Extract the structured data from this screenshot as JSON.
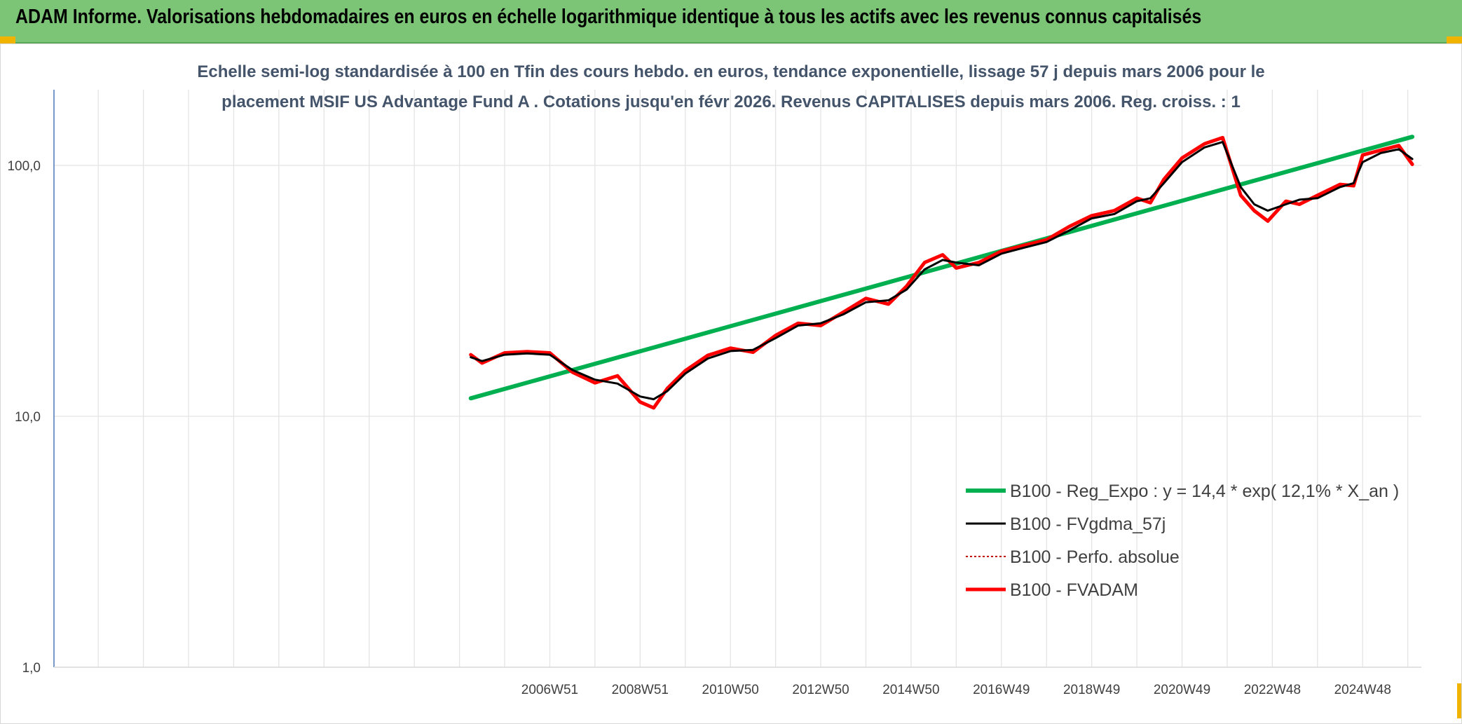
{
  "header": {
    "title": "ADAM Informe. Valorisations hebdomadaires en euros en échelle logarithmique identique à tous les actifs avec les revenus connus capitalisés"
  },
  "colors": {
    "header_bg": "#7cc576",
    "corner_accent": "#f0b400",
    "regression": "#00b050",
    "moving_average": "#000000",
    "perf_absolue": "#c00000",
    "fvadam": "#ff0000"
  },
  "chart_data": {
    "type": "line",
    "title_lines": [
      "Echelle semi-log standardisée à 100 en Tfin des cours hebdo. en euros, tendance exponentielle, lissage 57 j depuis mars 2006 pour le",
      "placement MSIF US Advantage Fund A . Cotations jusqu'en févr 2026. Revenus CAPITALISES depuis mars 2006. Reg. croiss. : 1"
    ],
    "y_scale": "log",
    "ylim": [
      1,
      170
    ],
    "y_ticks": [
      {
        "value": 1,
        "label": "1,0"
      },
      {
        "value": 10,
        "label": "10,0"
      },
      {
        "value": 100,
        "label": "100,0"
      }
    ],
    "xlim": [
      1996.02,
      2026.3
    ],
    "x_tick_labels": [
      {
        "x": 2007.0,
        "label": "2006W51"
      },
      {
        "x": 2009.0,
        "label": "2008W51"
      },
      {
        "x": 2011.0,
        "label": "2010W50"
      },
      {
        "x": 2013.0,
        "label": "2012W50"
      },
      {
        "x": 2015.0,
        "label": "2014W50"
      },
      {
        "x": 2017.0,
        "label": "2016W49"
      },
      {
        "x": 2019.0,
        "label": "2018W49"
      },
      {
        "x": 2021.0,
        "label": "2020W49"
      },
      {
        "x": 2023.0,
        "label": "2022W48"
      },
      {
        "x": 2025.0,
        "label": "2024W48"
      }
    ],
    "grid": true,
    "legend_position": "bottom-right",
    "series": [
      {
        "name": "B100 - Reg_Expo : y = 14,4 * exp( 12,1% *  X_an )",
        "style": "regression",
        "x": [
          2005.25,
          2026.1
        ],
        "values": [
          11.8,
          130
        ]
      },
      {
        "name": "B100 - FVgdma_57j",
        "style": "moving-average",
        "x": [
          2005.25,
          2005.5,
          2006.0,
          2006.5,
          2007.0,
          2007.5,
          2008.0,
          2008.5,
          2009.0,
          2009.3,
          2009.6,
          2010.0,
          2010.5,
          2011.0,
          2011.5,
          2012.0,
          2012.5,
          2013.0,
          2013.5,
          2014.0,
          2014.5,
          2014.9,
          2015.3,
          2015.7,
          2016.0,
          2016.5,
          2017.0,
          2017.5,
          2018.0,
          2018.5,
          2019.0,
          2019.5,
          2020.0,
          2020.3,
          2020.6,
          2021.0,
          2021.5,
          2021.9,
          2022.3,
          2022.6,
          2022.9,
          2023.3,
          2023.6,
          2024.0,
          2024.5,
          2024.8,
          2025.0,
          2025.4,
          2025.8,
          2026.1
        ],
        "values": [
          17.2,
          16.6,
          17.6,
          17.8,
          17.6,
          15.3,
          14.0,
          13.5,
          12.0,
          11.7,
          12.6,
          14.8,
          17.0,
          18.2,
          18.4,
          20.5,
          23.0,
          23.5,
          25.5,
          28.5,
          29.0,
          32.0,
          38.5,
          42.0,
          41.0,
          40.0,
          44.5,
          47.0,
          49.5,
          55.0,
          61.5,
          64.0,
          72.0,
          74.0,
          85.0,
          103.0,
          118.0,
          124.0,
          82.0,
          70.0,
          66.0,
          70.0,
          73.0,
          74.0,
          82.0,
          85.0,
          103.0,
          112.0,
          116.0,
          106.0
        ]
      },
      {
        "name": "B100 - Perfo. absolue",
        "style": "dotted",
        "x": [],
        "values": []
      },
      {
        "name": "B100 - FVADAM",
        "style": "main",
        "x": [
          2005.25,
          2005.5,
          2006.0,
          2006.5,
          2007.0,
          2007.5,
          2008.0,
          2008.5,
          2009.0,
          2009.3,
          2009.6,
          2010.0,
          2010.5,
          2011.0,
          2011.5,
          2012.0,
          2012.5,
          2013.0,
          2013.5,
          2014.0,
          2014.5,
          2014.9,
          2015.3,
          2015.7,
          2016.0,
          2016.5,
          2017.0,
          2017.5,
          2018.0,
          2018.5,
          2019.0,
          2019.5,
          2020.0,
          2020.3,
          2020.6,
          2021.0,
          2021.5,
          2021.9,
          2022.3,
          2022.6,
          2022.9,
          2023.3,
          2023.6,
          2024.0,
          2024.5,
          2024.8,
          2025.0,
          2025.4,
          2025.8,
          2026.1
        ],
        "values": [
          17.6,
          16.3,
          17.9,
          18.1,
          17.9,
          15.0,
          13.6,
          14.5,
          11.4,
          10.8,
          12.9,
          15.2,
          17.5,
          18.7,
          18.0,
          21.0,
          23.5,
          23.0,
          26.0,
          29.5,
          28.0,
          33.0,
          41.0,
          44.0,
          39.0,
          41.0,
          45.5,
          48.0,
          50.5,
          57.0,
          63.0,
          66.0,
          74.0,
          71.0,
          88.0,
          107.0,
          122.0,
          129.0,
          76.0,
          66.0,
          60.0,
          72.0,
          70.0,
          76.0,
          84.0,
          83.0,
          110.0,
          115.0,
          120.0,
          101.0
        ]
      }
    ]
  }
}
